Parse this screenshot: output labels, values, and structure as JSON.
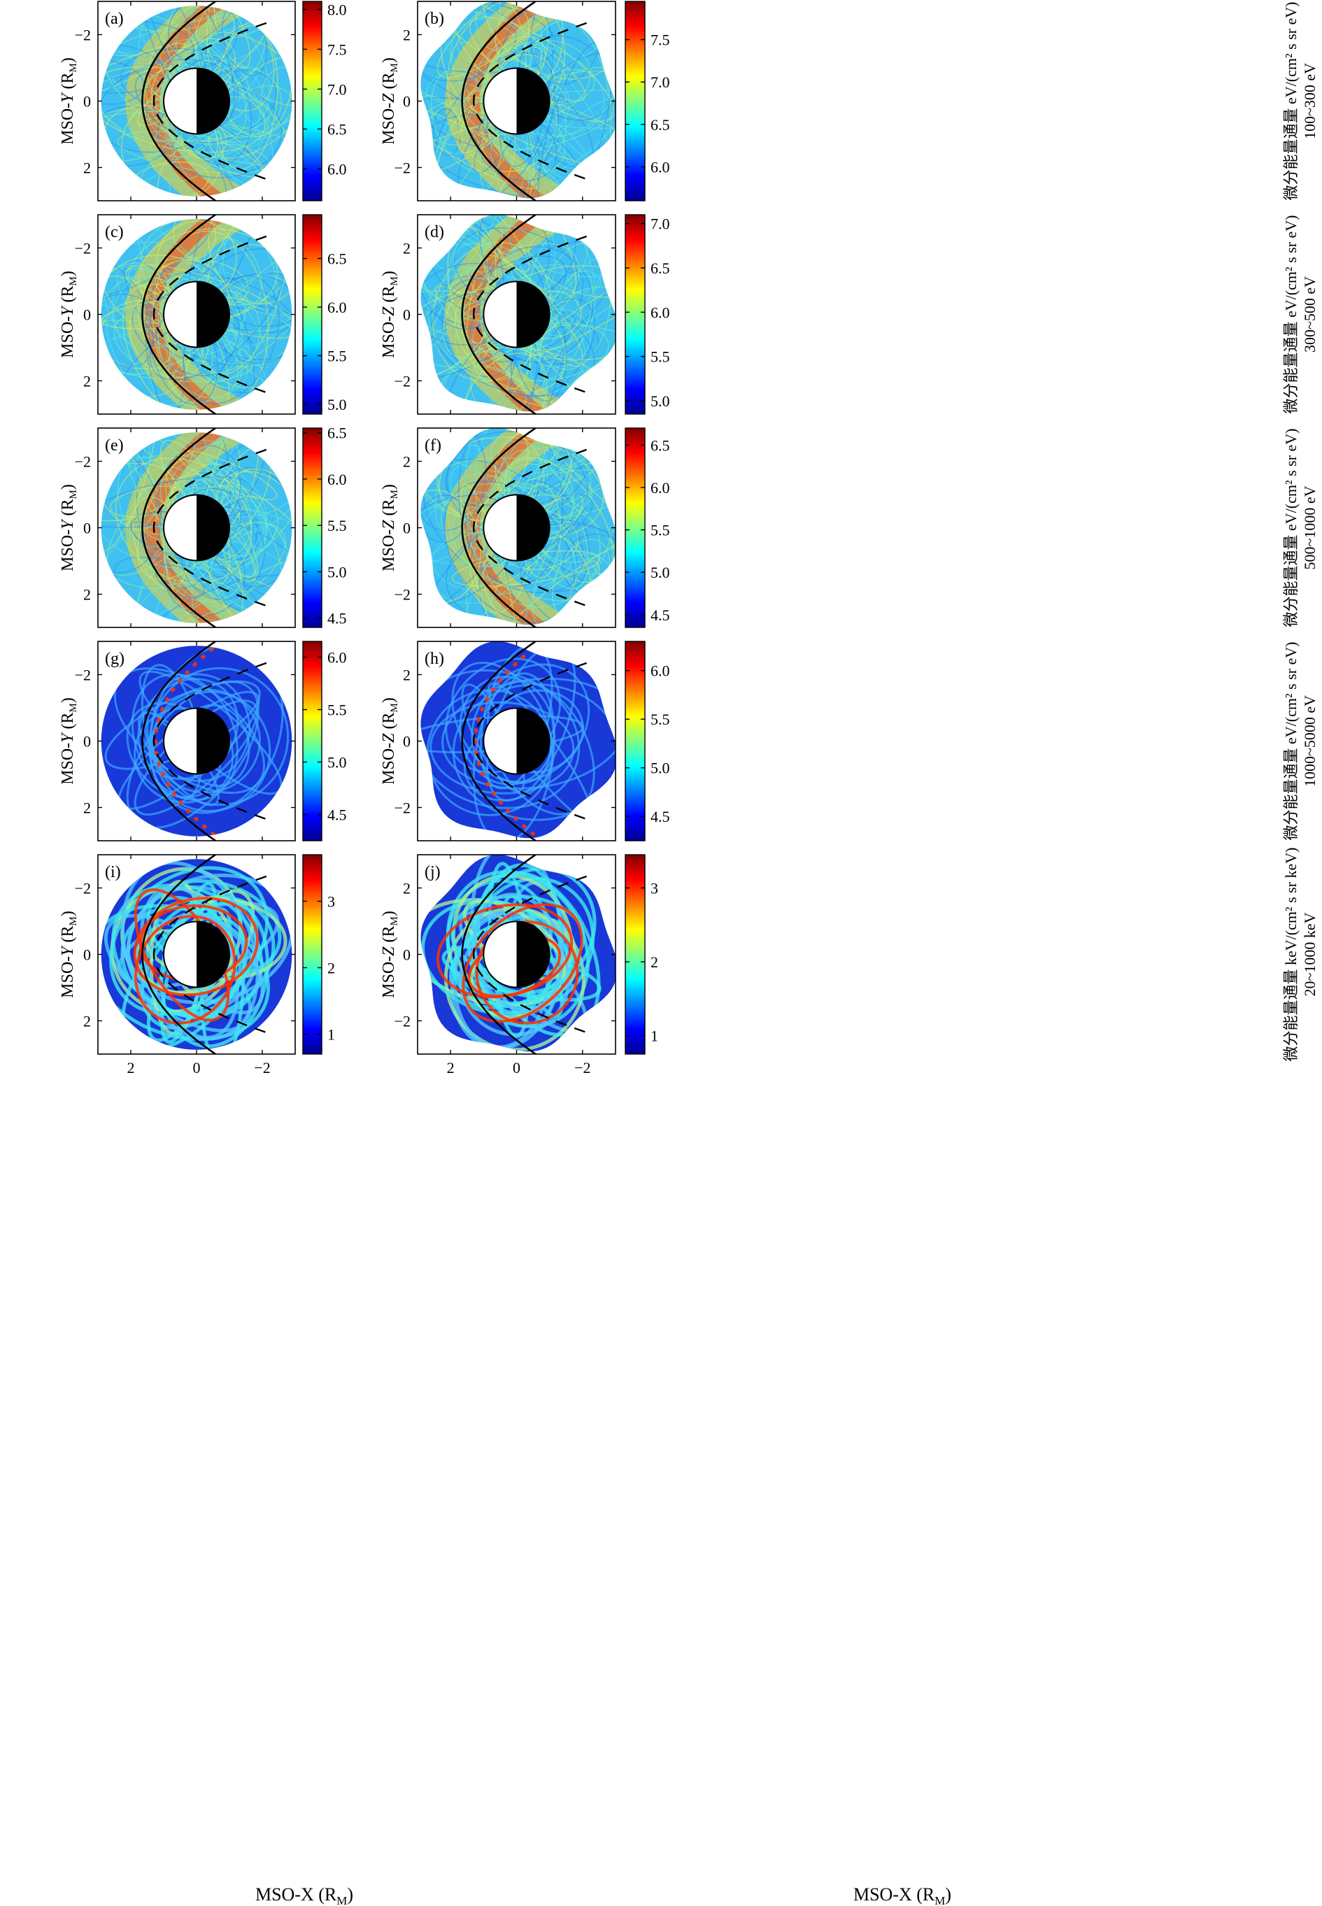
{
  "colormap": [
    "#00008f",
    "#0000ff",
    "#0080ff",
    "#00ffff",
    "#80ff80",
    "#ffff00",
    "#ff8000",
    "#ff0000",
    "#800000"
  ],
  "figure": {
    "xlabel": "MSO-X (R",
    "xlabel_sub": "M",
    "xlabel_close": ")",
    "ylabel_y_prefix": "MSO-",
    "ylabel_y_italic": "Y",
    "ylabel_z_prefix": "MSO-",
    "ylabel_z_italic": "Z",
    "ylabel_open": " (R",
    "ylabel_sub": "M",
    "ylabel_close": ")"
  },
  "chart_data": [
    {
      "type": "heatmap",
      "panel": "(a)",
      "plane": "X-Y",
      "xlim": [
        3,
        -3
      ],
      "ylim": [
        -3,
        3
      ],
      "x_ticks": [
        "2",
        "0",
        "−2"
      ],
      "y_ticks": [
        "−2",
        "0",
        "2"
      ],
      "colorbar": {
        "range": [
          5.6,
          8.1
        ],
        "ticks": [
          "6.0",
          "6.5",
          "7.0",
          "7.5",
          "8.0"
        ]
      },
      "pattern": "magnetosheath",
      "energy_band": "100~300 eV"
    },
    {
      "type": "heatmap",
      "panel": "(b)",
      "plane": "X-Z",
      "xlim": [
        3,
        -3
      ],
      "ylim": [
        -3,
        3
      ],
      "x_ticks": [
        "2",
        "0",
        "−2"
      ],
      "y_ticks": [
        "2",
        "0",
        "−2"
      ],
      "colorbar": {
        "range": [
          5.6,
          7.95
        ],
        "ticks": [
          "6.0",
          "6.5",
          "7.0",
          "7.5"
        ],
        "label": "微分能量通量 eV/(cm² s sr eV)",
        "sublabel": "100~300 eV"
      },
      "pattern": "magnetosheath",
      "energy_band": "100~300 eV"
    },
    {
      "type": "heatmap",
      "panel": "(c)",
      "plane": "X-Y",
      "xlim": [
        3,
        -3
      ],
      "ylim": [
        -3,
        3
      ],
      "x_ticks": [
        "2",
        "0",
        "−2"
      ],
      "y_ticks": [
        "−2",
        "0",
        "2"
      ],
      "colorbar": {
        "range": [
          4.9,
          6.95
        ],
        "ticks": [
          "5.0",
          "5.5",
          "6.0",
          "6.5"
        ]
      },
      "pattern": "magnetosheath",
      "energy_band": "300~500 eV"
    },
    {
      "type": "heatmap",
      "panel": "(d)",
      "plane": "X-Z",
      "xlim": [
        3,
        -3
      ],
      "ylim": [
        -3,
        3
      ],
      "x_ticks": [
        "2",
        "0",
        "−2"
      ],
      "y_ticks": [
        "2",
        "0",
        "−2"
      ],
      "colorbar": {
        "range": [
          4.85,
          7.1
        ],
        "ticks": [
          "5.0",
          "5.5",
          "6.0",
          "6.5",
          "7.0"
        ],
        "label": "微分能量通量 eV/(cm² s sr eV)",
        "sublabel": "300~500 eV"
      },
      "pattern": "magnetosheath",
      "energy_band": "300~500 eV"
    },
    {
      "type": "heatmap",
      "panel": "(e)",
      "plane": "X-Y",
      "xlim": [
        3,
        -3
      ],
      "ylim": [
        -3,
        3
      ],
      "x_ticks": [
        "2",
        "0",
        "−2"
      ],
      "y_ticks": [
        "−2",
        "0",
        "2"
      ],
      "colorbar": {
        "range": [
          4.4,
          6.55
        ],
        "ticks": [
          "4.5",
          "5.0",
          "5.5",
          "6.0",
          "6.5"
        ]
      },
      "pattern": "magnetosheath",
      "energy_band": "500~1000 eV"
    },
    {
      "type": "heatmap",
      "panel": "(f)",
      "plane": "X-Z",
      "xlim": [
        3,
        -3
      ],
      "ylim": [
        -3,
        3
      ],
      "x_ticks": [
        "2",
        "0",
        "−2"
      ],
      "y_ticks": [
        "2",
        "0",
        "−2"
      ],
      "colorbar": {
        "range": [
          4.35,
          6.7
        ],
        "ticks": [
          "4.5",
          "5.0",
          "5.5",
          "6.0",
          "6.5"
        ],
        "label": "微分能量通量 eV/(cm² s sr eV)",
        "sublabel": "500~1000 eV"
      },
      "pattern": "magnetosheath",
      "energy_band": "500~1000 eV"
    },
    {
      "type": "heatmap",
      "panel": "(g)",
      "plane": "X-Y",
      "xlim": [
        3,
        -3
      ],
      "ylim": [
        -3,
        3
      ],
      "x_ticks": [
        "2",
        "0",
        "−2"
      ],
      "y_ticks": [
        "−2",
        "0",
        "2"
      ],
      "colorbar": {
        "range": [
          4.25,
          6.15
        ],
        "ticks": [
          "4.5",
          "5.0",
          "5.5",
          "6.0"
        ]
      },
      "pattern": "orbits",
      "energy_band": "1000~5000 eV"
    },
    {
      "type": "heatmap",
      "panel": "(h)",
      "plane": "X-Z",
      "xlim": [
        3,
        -3
      ],
      "ylim": [
        -3,
        3
      ],
      "x_ticks": [
        "2",
        "0",
        "−2"
      ],
      "y_ticks": [
        "2",
        "0",
        "−2"
      ],
      "colorbar": {
        "range": [
          4.25,
          6.3
        ],
        "ticks": [
          "4.5",
          "5.0",
          "5.5",
          "6.0"
        ],
        "label": "微分能量通量 eV/(cm² s sr eV)",
        "sublabel": "1000~5000 eV"
      },
      "pattern": "orbits",
      "energy_band": "1000~5000 eV"
    },
    {
      "type": "heatmap",
      "panel": "(i)",
      "plane": "X-Y",
      "xlim": [
        3,
        -3
      ],
      "ylim": [
        -3,
        3
      ],
      "x_ticks": [
        "2",
        "0",
        "−2"
      ],
      "y_ticks": [
        "−2",
        "0",
        "2"
      ],
      "colorbar": {
        "range": [
          0.7,
          3.7
        ],
        "ticks": [
          "1",
          "2",
          "3"
        ]
      },
      "pattern": "orbits_strong",
      "energy_band": "20~1000 keV"
    },
    {
      "type": "heatmap",
      "panel": "(j)",
      "plane": "X-Z",
      "xlim": [
        3,
        -3
      ],
      "ylim": [
        -3,
        3
      ],
      "x_ticks": [
        "2",
        "0",
        "−2"
      ],
      "y_ticks": [
        "2",
        "0",
        "−2"
      ],
      "colorbar": {
        "range": [
          0.75,
          3.45
        ],
        "ticks": [
          "1",
          "2",
          "3"
        ],
        "label": "微分能量通量 keV/(cm² s sr keV)",
        "sublabel": "20~1000 keV"
      },
      "pattern": "orbits_strong",
      "energy_band": "20~1000 keV"
    }
  ]
}
